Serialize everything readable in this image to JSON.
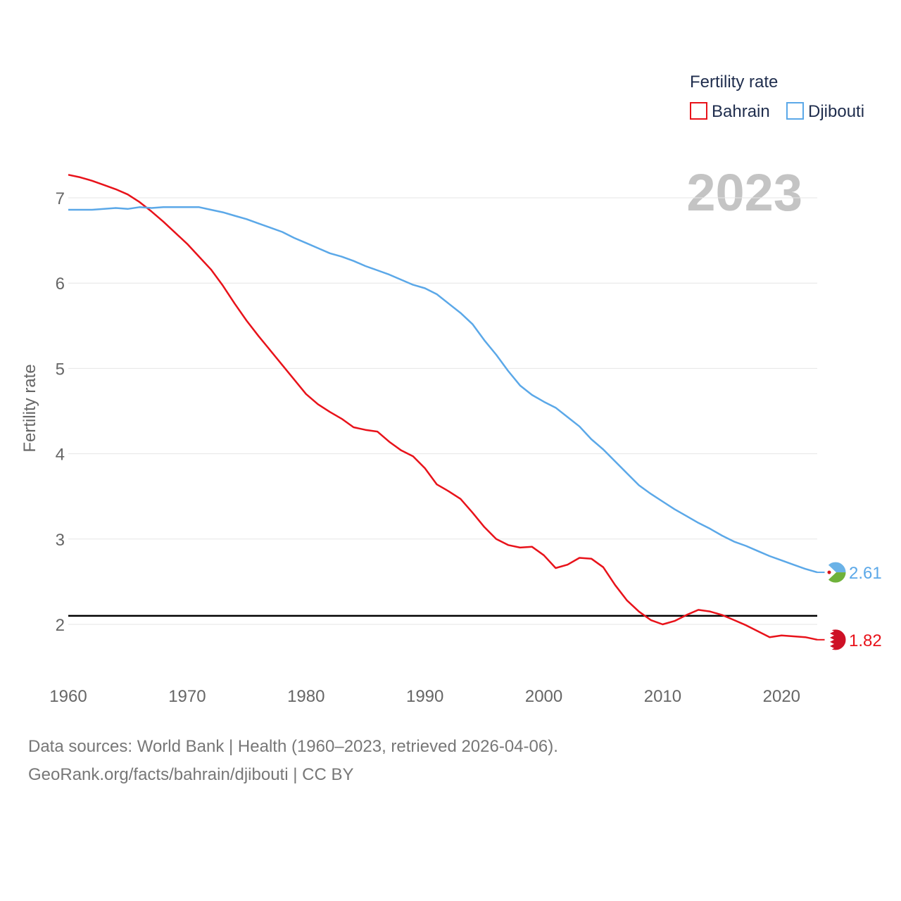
{
  "chart_data": {
    "type": "line",
    "title": "Fertility rate",
    "ylabel": "Fertility rate",
    "xlabel": "",
    "year_label": "2023",
    "xlim": [
      1960,
      2023
    ],
    "ylim": [
      1.5,
      7.5
    ],
    "x_ticks": [
      1960,
      1970,
      1980,
      1990,
      2000,
      2010,
      2020
    ],
    "y_ticks": [
      2,
      3,
      4,
      5,
      6,
      7
    ],
    "reference_line": 2.1,
    "x": [
      1960,
      1961,
      1962,
      1963,
      1964,
      1965,
      1966,
      1967,
      1968,
      1969,
      1970,
      1971,
      1972,
      1973,
      1974,
      1975,
      1976,
      1977,
      1978,
      1979,
      1980,
      1981,
      1982,
      1983,
      1984,
      1985,
      1986,
      1987,
      1988,
      1989,
      1990,
      1991,
      1992,
      1993,
      1994,
      1995,
      1996,
      1997,
      1998,
      1999,
      2000,
      2001,
      2002,
      2003,
      2004,
      2005,
      2006,
      2007,
      2008,
      2009,
      2010,
      2011,
      2012,
      2013,
      2014,
      2015,
      2016,
      2017,
      2018,
      2019,
      2020,
      2021,
      2022,
      2023
    ],
    "series": [
      {
        "name": "Bahrain",
        "color": "#e8121a",
        "end_label": "1.82",
        "flag": "bahrain-flag-icon",
        "values": [
          7.27,
          7.24,
          7.2,
          7.15,
          7.1,
          7.04,
          6.95,
          6.84,
          6.72,
          6.59,
          6.46,
          6.31,
          6.16,
          5.97,
          5.76,
          5.56,
          5.38,
          5.21,
          5.04,
          4.87,
          4.7,
          4.58,
          4.49,
          4.41,
          4.31,
          4.28,
          4.26,
          4.14,
          4.04,
          3.97,
          3.83,
          3.64,
          3.56,
          3.47,
          3.31,
          3.14,
          3.0,
          2.93,
          2.9,
          2.91,
          2.81,
          2.66,
          2.7,
          2.78,
          2.77,
          2.67,
          2.46,
          2.28,
          2.15,
          2.05,
          2.0,
          2.04,
          2.11,
          2.17,
          2.15,
          2.11,
          2.05,
          1.99,
          1.92,
          1.85,
          1.87,
          1.86,
          1.85,
          1.82
        ]
      },
      {
        "name": "Djibouti",
        "color": "#5ba8e8",
        "end_label": "2.61",
        "flag": "djibouti-flag-icon",
        "values": [
          6.86,
          6.86,
          6.86,
          6.87,
          6.88,
          6.87,
          6.89,
          6.88,
          6.89,
          6.89,
          6.89,
          6.89,
          6.86,
          6.83,
          6.79,
          6.75,
          6.7,
          6.65,
          6.6,
          6.53,
          6.47,
          6.41,
          6.35,
          6.31,
          6.26,
          6.2,
          6.15,
          6.1,
          6.04,
          5.98,
          5.94,
          5.87,
          5.76,
          5.65,
          5.52,
          5.33,
          5.16,
          4.97,
          4.8,
          4.69,
          4.61,
          4.54,
          4.43,
          4.32,
          4.17,
          4.05,
          3.91,
          3.77,
          3.63,
          3.53,
          3.44,
          3.35,
          3.27,
          3.19,
          3.12,
          3.04,
          2.97,
          2.92,
          2.86,
          2.8,
          2.75,
          2.7,
          2.65,
          2.61
        ]
      }
    ]
  },
  "footer": {
    "line1": "Data sources: World Bank | Health (1960–2023, retrieved 2026-04-06).",
    "line2": "GeoRank.org/facts/bahrain/djibouti | CC BY"
  }
}
